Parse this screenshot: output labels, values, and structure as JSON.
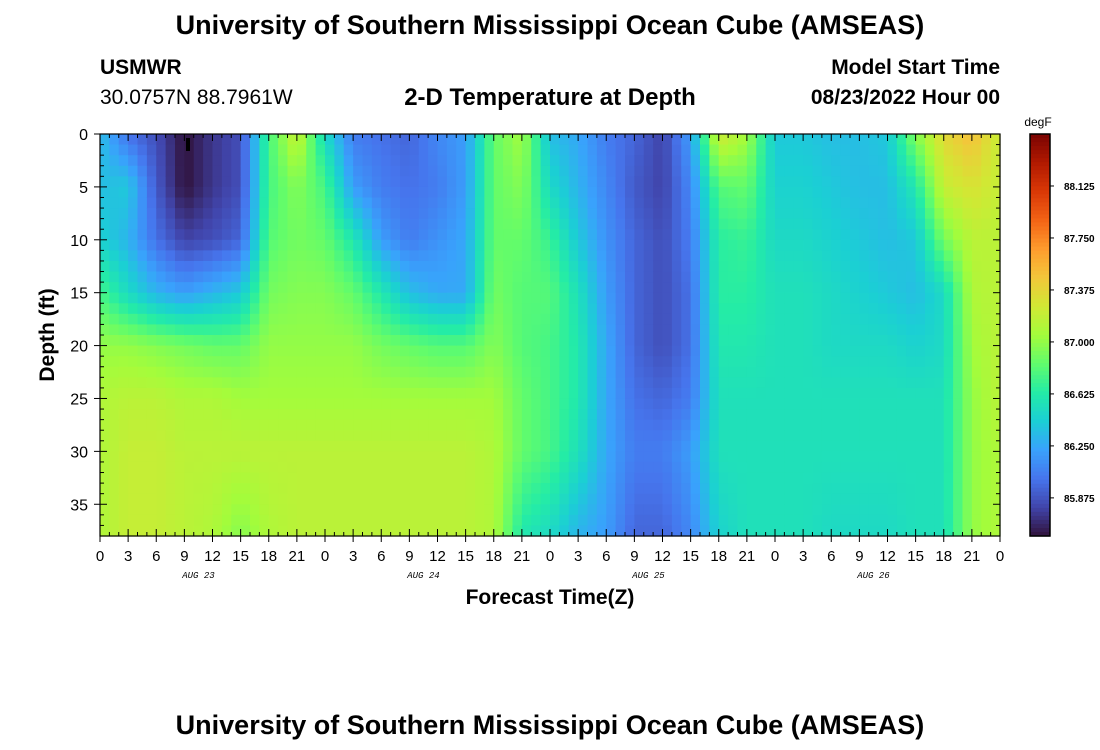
{
  "header": {
    "title": "University of Southern Mississippi Ocean Cube (AMSEAS)",
    "station_name": "USMWR",
    "station_coords": "30.0757N  88.7961W",
    "plot_title": "2-D Temperature at Depth",
    "model_start_label": "Model Start Time",
    "model_start_value": "08/23/2022 Hour 00"
  },
  "footer": {
    "title": "University of Southern Mississippi Ocean Cube (AMSEAS)"
  },
  "chart_data": {
    "type": "heatmap",
    "title": "2-D Temperature at Depth",
    "xlabel": "Forecast Time(Z)",
    "ylabel": "Depth (ft)",
    "x_range_hours": [
      0,
      96
    ],
    "x_tick_labels": [
      "0",
      "3",
      "6",
      "9",
      "12",
      "15",
      "18",
      "21",
      "0",
      "3",
      "6",
      "9",
      "12",
      "15",
      "18",
      "21",
      "0",
      "3",
      "6",
      "9",
      "12",
      "15",
      "18",
      "21",
      "0",
      "3",
      "6",
      "9",
      "12",
      "15",
      "18",
      "21",
      "0"
    ],
    "date_labels": [
      "AUG 23",
      "AUG 24",
      "AUG 25",
      "AUG 26"
    ],
    "ylim": [
      0,
      38
    ],
    "y_ticks": [
      0,
      5,
      10,
      15,
      20,
      25,
      30,
      35
    ],
    "y_inverted": true,
    "colorbar": {
      "unit": "degF",
      "range": [
        85.6,
        88.5
      ],
      "tick_labels": [
        "88.125",
        "87.750",
        "87.375",
        "87.000",
        "86.625",
        "86.250",
        "85.875"
      ],
      "colors": [
        "#30123b",
        "#4145ab",
        "#4675ed",
        "#39a2fc",
        "#1bcfd4",
        "#24eca6",
        "#61fc6c",
        "#a4fc3b",
        "#d1e834",
        "#f3c63a",
        "#fe9b2d",
        "#f36315",
        "#d93806",
        "#b11901",
        "#7a0402"
      ]
    },
    "anchors": {
      "hours": [
        0,
        3,
        6,
        9,
        12,
        15,
        18,
        21,
        24,
        27,
        30,
        33,
        36,
        39,
        42,
        45,
        48,
        51,
        54,
        57,
        60,
        63,
        66,
        69,
        72,
        75,
        78,
        81,
        84,
        87,
        90,
        93,
        96
      ],
      "depths": [
        0,
        5,
        10,
        15,
        20,
        25,
        30,
        38
      ],
      "values": [
        [
          86.35,
          86.35,
          86.45,
          86.75,
          87.0,
          87.1,
          87.1,
          87.1
        ],
        [
          86.0,
          86.4,
          86.3,
          86.5,
          87.0,
          87.15,
          87.2,
          87.2
        ],
        [
          85.85,
          85.9,
          86.0,
          86.3,
          86.95,
          87.15,
          87.2,
          87.2
        ],
        [
          85.6,
          85.6,
          85.8,
          86.2,
          86.9,
          87.1,
          87.15,
          87.15
        ],
        [
          85.75,
          85.75,
          85.85,
          86.3,
          86.85,
          87.1,
          87.15,
          87.1
        ],
        [
          85.85,
          85.85,
          85.95,
          86.4,
          86.85,
          87.05,
          87.15,
          86.95
        ],
        [
          86.75,
          86.75,
          86.8,
          86.9,
          87.0,
          87.05,
          87.15,
          87.1
        ],
        [
          87.2,
          86.95,
          86.9,
          86.95,
          87.0,
          87.05,
          87.15,
          87.15
        ],
        [
          86.5,
          86.75,
          86.85,
          86.95,
          87.0,
          87.05,
          87.15,
          87.15
        ],
        [
          86.05,
          86.2,
          86.6,
          86.85,
          87.0,
          87.05,
          87.15,
          87.15
        ],
        [
          86.0,
          86.05,
          86.2,
          86.6,
          86.9,
          87.05,
          87.15,
          87.15
        ],
        [
          85.95,
          86.0,
          86.05,
          86.35,
          86.85,
          87.05,
          87.15,
          87.15
        ],
        [
          86.1,
          86.05,
          86.15,
          86.25,
          86.8,
          87.05,
          87.15,
          87.15
        ],
        [
          86.2,
          86.2,
          86.25,
          86.25,
          86.8,
          87.05,
          87.15,
          87.15
        ],
        [
          86.85,
          86.85,
          86.85,
          86.9,
          86.95,
          87.05,
          87.1,
          87.1
        ],
        [
          87.05,
          86.95,
          86.85,
          86.8,
          86.8,
          86.85,
          86.85,
          86.6
        ],
        [
          86.35,
          86.5,
          86.7,
          86.8,
          86.75,
          86.75,
          86.75,
          86.5
        ],
        [
          86.25,
          86.3,
          86.4,
          86.55,
          86.6,
          86.6,
          86.55,
          86.3
        ],
        [
          86.05,
          86.1,
          86.15,
          86.2,
          86.25,
          86.25,
          86.25,
          86.2
        ],
        [
          85.95,
          85.9,
          85.95,
          85.95,
          85.95,
          86.0,
          86.05,
          85.95
        ],
        [
          85.8,
          85.8,
          85.85,
          85.85,
          85.85,
          85.95,
          86.05,
          85.95
        ],
        [
          86.2,
          86.1,
          86.05,
          86.0,
          86.0,
          86.05,
          86.2,
          86.1
        ],
        [
          87.25,
          86.8,
          86.65,
          86.65,
          86.6,
          86.55,
          86.55,
          86.45
        ],
        [
          87.05,
          86.85,
          86.7,
          86.65,
          86.6,
          86.55,
          86.55,
          86.55
        ],
        [
          86.4,
          86.45,
          86.5,
          86.55,
          86.55,
          86.55,
          86.55,
          86.55
        ],
        [
          86.4,
          86.45,
          86.5,
          86.55,
          86.55,
          86.55,
          86.55,
          86.55
        ],
        [
          86.35,
          86.4,
          86.45,
          86.5,
          86.5,
          86.55,
          86.55,
          86.5
        ],
        [
          86.35,
          86.35,
          86.4,
          86.45,
          86.5,
          86.55,
          86.55,
          86.5
        ],
        [
          86.4,
          86.35,
          86.35,
          86.4,
          86.5,
          86.55,
          86.55,
          86.5
        ],
        [
          86.95,
          86.6,
          86.4,
          86.35,
          86.45,
          86.55,
          86.55,
          86.55
        ],
        [
          87.35,
          87.2,
          86.9,
          86.5,
          86.5,
          86.55,
          86.55,
          86.55
        ],
        [
          87.5,
          87.3,
          87.15,
          87.1,
          87.05,
          87.0,
          87.0,
          87.0
        ],
        [
          87.2,
          87.2,
          87.15,
          87.15,
          87.15,
          87.15,
          87.1,
          87.1
        ]
      ]
    }
  }
}
